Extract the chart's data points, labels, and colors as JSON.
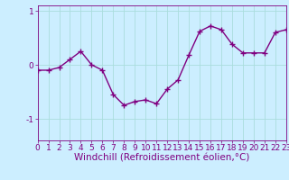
{
  "x": [
    0,
    1,
    2,
    3,
    4,
    5,
    6,
    7,
    8,
    9,
    10,
    11,
    12,
    13,
    14,
    15,
    16,
    17,
    18,
    19,
    20,
    21,
    22,
    23
  ],
  "y": [
    -0.1,
    -0.1,
    -0.05,
    0.1,
    0.25,
    0.0,
    -0.1,
    -0.55,
    -0.75,
    -0.68,
    -0.65,
    -0.72,
    -0.45,
    -0.28,
    0.18,
    0.62,
    0.72,
    0.65,
    0.38,
    0.22,
    0.22,
    0.22,
    0.6,
    0.65
  ],
  "line_color": "#800080",
  "marker": "+",
  "marker_size": 4,
  "background_color": "#cceeff",
  "grid_color": "#aadddd",
  "xlabel": "Windchill (Refroidissement éolien,°C)",
  "xlim": [
    0,
    23
  ],
  "ylim": [
    -1.4,
    1.1
  ],
  "yticks": [
    1,
    0,
    -1
  ],
  "ytick_labels": [
    "1",
    "0",
    "-1"
  ],
  "xticks": [
    0,
    1,
    2,
    3,
    4,
    5,
    6,
    7,
    8,
    9,
    10,
    11,
    12,
    13,
    14,
    15,
    16,
    17,
    18,
    19,
    20,
    21,
    22,
    23
  ],
  "tick_color": "#800080",
  "tick_fontsize": 6.5,
  "xlabel_fontsize": 7.5,
  "line_width": 1.0,
  "marker_edge_width": 1.0
}
